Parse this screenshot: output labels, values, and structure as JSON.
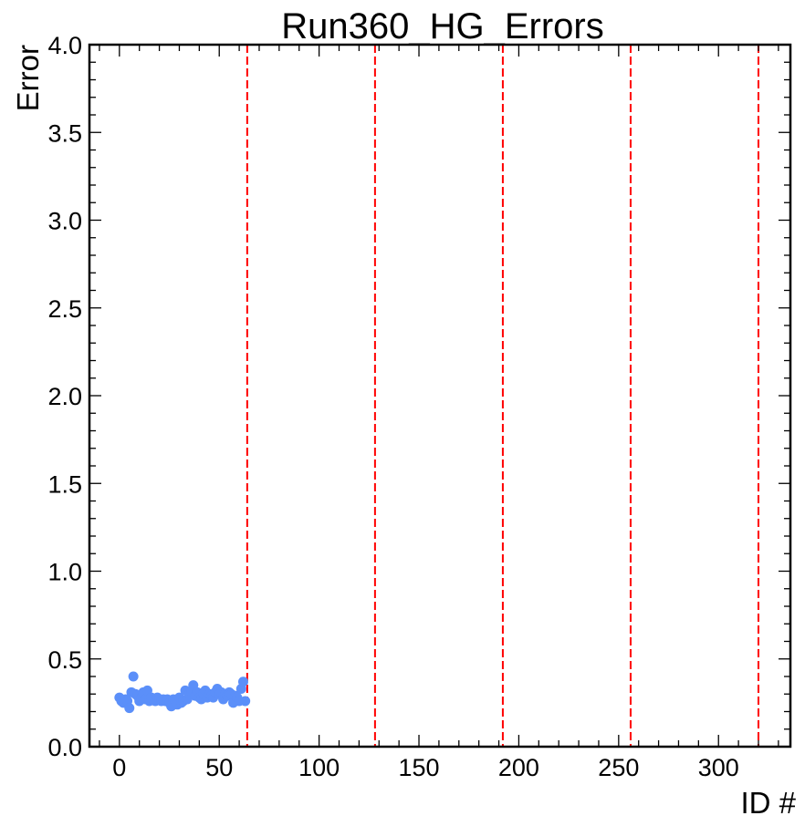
{
  "chart_data": {
    "type": "scatter",
    "title": "Run360_HG_Errors",
    "xlabel": "ID #",
    "ylabel": "Error",
    "xlim": [
      -15,
      336
    ],
    "ylim": [
      0,
      4.0
    ],
    "x_ticks": [
      0,
      50,
      100,
      150,
      200,
      250,
      300
    ],
    "x_tick_labels": [
      "0",
      "50",
      "100",
      "150",
      "200",
      "250",
      "300"
    ],
    "y_ticks": [
      0,
      0.5,
      1.0,
      1.5,
      2.0,
      2.5,
      3.0,
      3.5,
      4.0
    ],
    "y_tick_labels": [
      "0.0",
      "0.5",
      "1.0",
      "1.5",
      "2.0",
      "2.5",
      "3.0",
      "3.5",
      "4.0"
    ],
    "grid": false,
    "marker_color": "#5b8ff9",
    "vline_color": "#ff0000",
    "vlines": [
      64,
      128,
      192,
      256,
      320
    ],
    "series": [
      {
        "x": [
          0,
          1,
          2,
          3,
          4,
          5,
          6,
          7,
          8,
          9,
          10,
          11,
          12,
          13,
          14,
          15,
          16,
          17,
          18,
          19,
          20,
          21,
          22,
          23,
          24,
          25,
          26,
          27,
          28,
          29,
          30,
          31,
          32,
          33,
          34,
          35,
          36,
          37,
          38,
          39,
          40,
          41,
          42,
          43,
          44,
          45,
          46,
          47,
          48,
          49,
          50,
          51,
          52,
          53,
          54,
          55,
          56,
          57,
          58,
          59,
          60,
          61,
          62,
          63
        ],
        "y": [
          0.28,
          0.26,
          0.25,
          0.27,
          0.26,
          0.22,
          0.31,
          0.4,
          0.3,
          0.29,
          0.26,
          0.28,
          0.31,
          0.27,
          0.32,
          0.26,
          0.28,
          0.27,
          0.26,
          0.28,
          0.27,
          0.26,
          0.27,
          0.26,
          0.27,
          0.25,
          0.23,
          0.27,
          0.26,
          0.24,
          0.28,
          0.25,
          0.26,
          0.32,
          0.27,
          0.3,
          0.31,
          0.35,
          0.29,
          0.31,
          0.28,
          0.27,
          0.3,
          0.32,
          0.28,
          0.3,
          0.29,
          0.28,
          0.31,
          0.33,
          0.3,
          0.31,
          0.27,
          0.3,
          0.29,
          0.31,
          0.3,
          0.25,
          0.29,
          0.28,
          0.26,
          0.33,
          0.37,
          0.26
        ]
      }
    ]
  }
}
